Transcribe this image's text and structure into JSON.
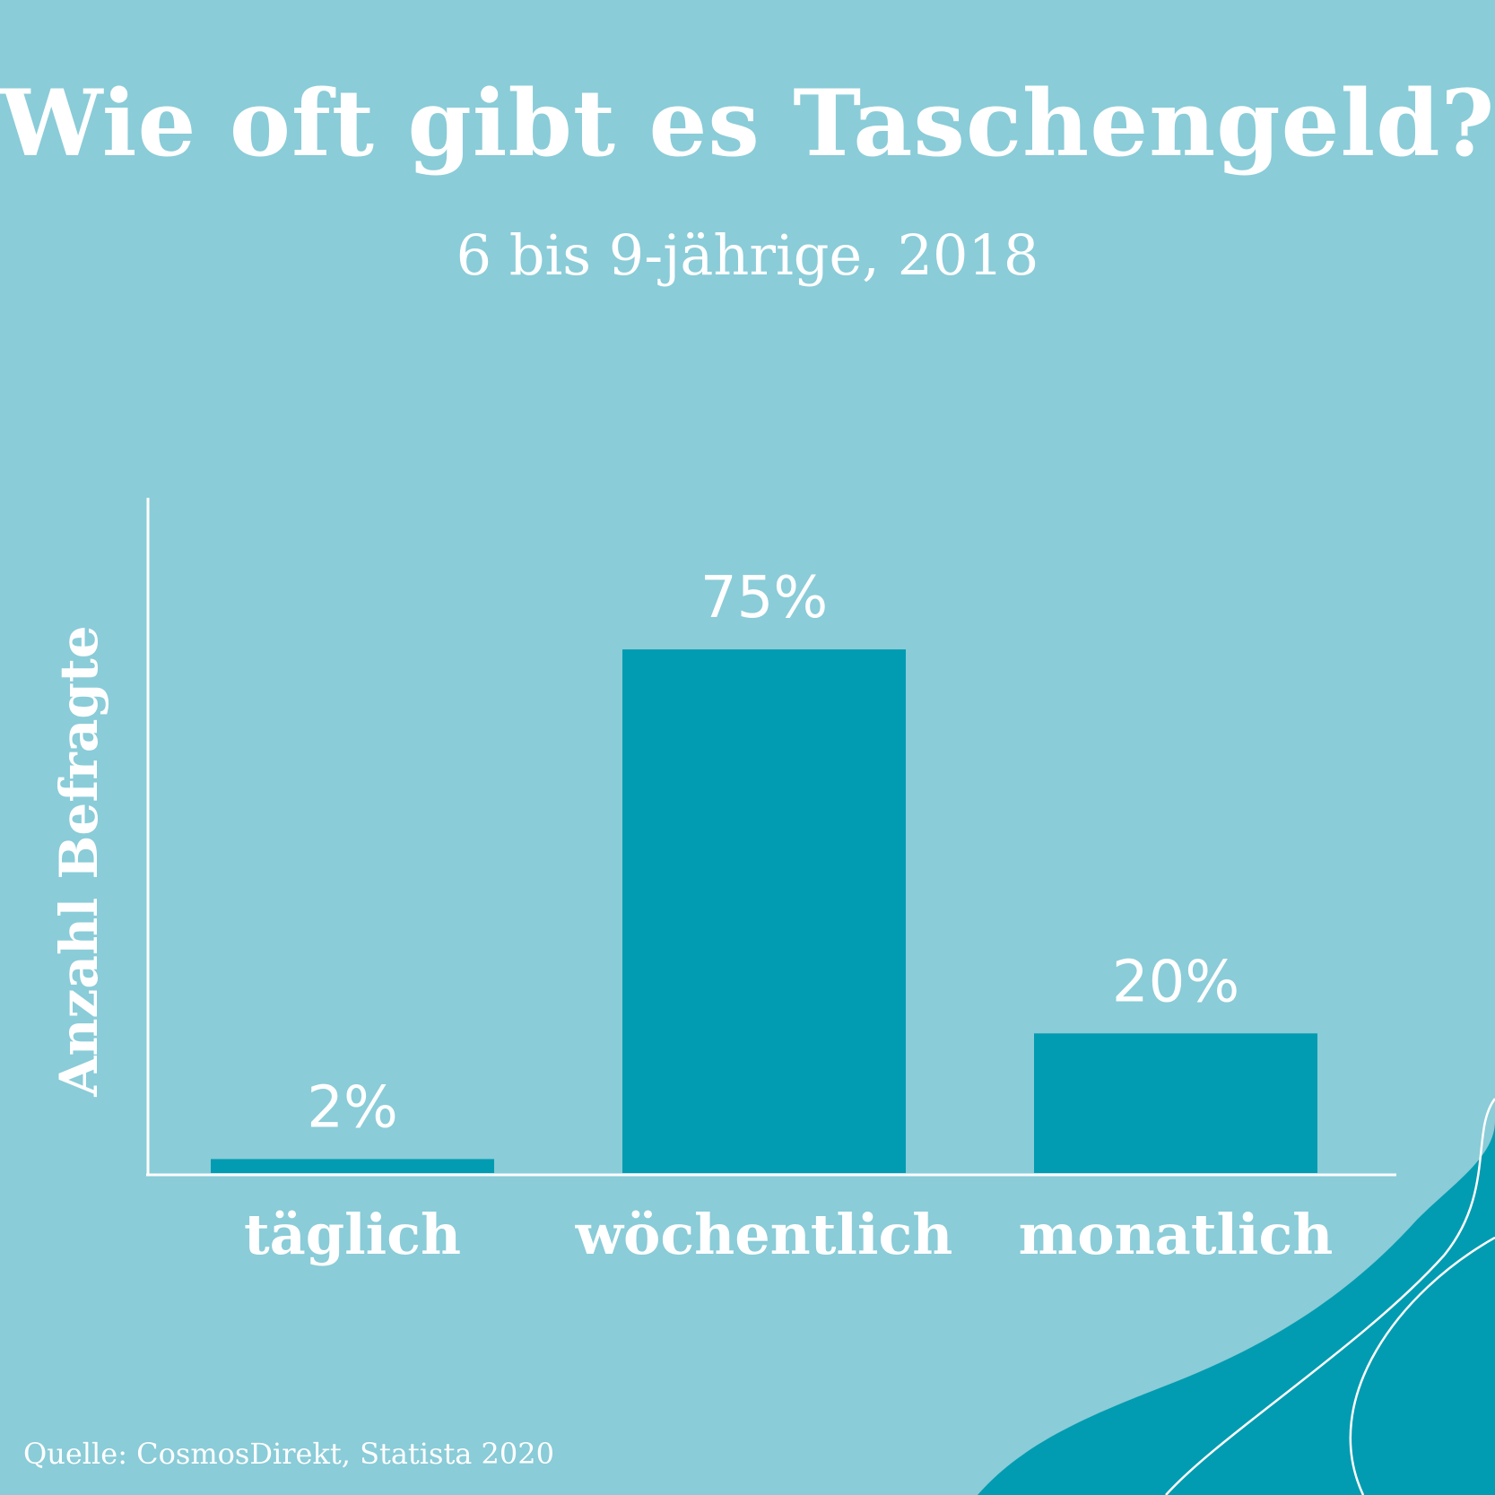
{
  "title": "Wie oft gibt es Taschengeld?",
  "subtitle": "6 bis 9-jährige, 2018",
  "source": "Quelle: CosmosDirekt, Statista 2020",
  "colors": {
    "background": "#8accd8",
    "bar": "#019cb1",
    "text": "#ffffff",
    "wave": "#019cb1"
  },
  "chart_data": {
    "type": "bar",
    "categories": [
      "täglich",
      "wöchentlich",
      "monatlich"
    ],
    "values": [
      2,
      75,
      20
    ],
    "value_labels": [
      "2%",
      "75%",
      "20%"
    ],
    "title": "Wie oft gibt es Taschengeld?",
    "subtitle": "6 bis 9-jährige, 2018",
    "xlabel": "",
    "ylabel": "Anzahl Befragte",
    "ylim": [
      0,
      100
    ],
    "grid": false,
    "legend": "none"
  }
}
